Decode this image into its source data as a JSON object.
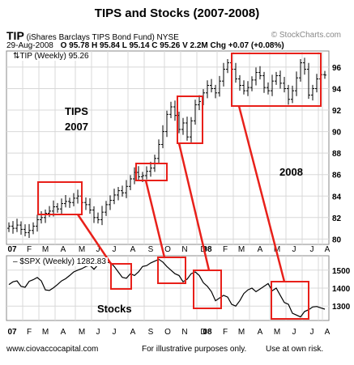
{
  "header": {
    "title": "TIPS and Stocks (2007-2008)",
    "symbol": "TIP",
    "fund_name": "(iShares Barclays TIPS Bond Fund) NYSE",
    "brand": "© StockCharts.com",
    "date": "29-Aug-2008",
    "ohlc": "O 95.78  H 95.84  L 95.14  C 95.26  V 2.2M  Chg +0.07 (+0.08%)",
    "legend_tip": "TIP (Weekly) 95.26",
    "legend_spx": "$SPX (Weekly) 1282.83"
  },
  "annotations": {
    "tips_line1": "TIPS",
    "tips_line2": "2007",
    "year_2008": "2008",
    "stocks": "Stocks"
  },
  "footer": {
    "left": "www.ciovaccocapital.com",
    "center": "For illustrative purposes only.",
    "right": "Use at own risk."
  },
  "colors": {
    "highlight": "#e8201a",
    "bars": "#000000",
    "grid": "#d8d8d8",
    "line": "#000000"
  },
  "chart_data": [
    {
      "type": "ohlc",
      "title": "TIP (Weekly) 95.26",
      "x_labels": [
        "07",
        "F",
        "M",
        "A",
        "M",
        "J",
        "J",
        "A",
        "S",
        "O",
        "N",
        "D",
        "08",
        "F",
        "M",
        "A",
        "M",
        "J",
        "J",
        "A"
      ],
      "y_ticks": [
        80,
        82,
        84,
        86,
        88,
        90,
        92,
        94,
        96
      ],
      "ylim": [
        79.5,
        97.5
      ],
      "series": [
        {
          "name": "TIP",
          "close": [
            81.2,
            81.0,
            81.3,
            80.9,
            80.6,
            80.8,
            81.2,
            81.8,
            82.0,
            82.4,
            82.6,
            83.0,
            82.8,
            83.3,
            83.5,
            83.4,
            83.8,
            84.0,
            83.4,
            83.2,
            82.7,
            82.0,
            81.8,
            82.5,
            83.2,
            83.6,
            84.1,
            84.5,
            84.3,
            84.9,
            85.6,
            86.2,
            85.8,
            85.9,
            86.3,
            86.6,
            87.5,
            88.8,
            90.0,
            91.6,
            92.3,
            91.5,
            90.2,
            90.8,
            89.5,
            91.0,
            92.5,
            92.8,
            93.6,
            94.3,
            94.0,
            93.6,
            94.7,
            95.8,
            96.4,
            95.8,
            94.9,
            94.3,
            93.8,
            94.1,
            94.8,
            95.5,
            95.2,
            94.1,
            93.8,
            94.7,
            95.2,
            94.5,
            94.0,
            93.0,
            93.8,
            95.0,
            96.4,
            95.8,
            93.4,
            94.0,
            94.9,
            95.3,
            95.26
          ]
        }
      ],
      "highlight_boxes_dates": [
        "Mar-May 2007",
        "Sep-Oct 2007",
        "Nov-Dec 2007",
        "Mar-Aug 2008"
      ]
    },
    {
      "type": "line",
      "title": "$SPX (Weekly) 1282.83",
      "x_labels": [
        "07",
        "F",
        "M",
        "A",
        "M",
        "J",
        "J",
        "A",
        "S",
        "O",
        "N",
        "D",
        "08",
        "F",
        "M",
        "A",
        "M",
        "J",
        "J",
        "A"
      ],
      "y_ticks": [
        1300,
        1400,
        1500
      ],
      "ylim": [
        1220,
        1580
      ],
      "series": [
        {
          "name": "$SPX",
          "values": [
            1420,
            1435,
            1440,
            1410,
            1405,
            1438,
            1447,
            1459,
            1440,
            1390,
            1387,
            1402,
            1420,
            1440,
            1452,
            1470,
            1490,
            1500,
            1508,
            1520,
            1527,
            1505,
            1530,
            1535,
            1540,
            1545,
            1520,
            1490,
            1460,
            1455,
            1480,
            1470,
            1490,
            1520,
            1525,
            1540,
            1550,
            1560,
            1545,
            1520,
            1500,
            1480,
            1470,
            1435,
            1450,
            1480,
            1490,
            1470,
            1430,
            1410,
            1380,
            1330,
            1345,
            1360,
            1350,
            1310,
            1300,
            1330,
            1370,
            1390,
            1400,
            1380,
            1395,
            1410,
            1425,
            1385,
            1400,
            1360,
            1320,
            1310,
            1260,
            1250,
            1240,
            1270,
            1280,
            1295,
            1298,
            1290,
            1282.83
          ]
        }
      ],
      "highlight_boxes_dates": [
        "Jul-Aug 2007",
        "Oct-Nov 2007",
        "Jan-Feb 2008",
        "Jun-Jul 2008"
      ]
    }
  ]
}
